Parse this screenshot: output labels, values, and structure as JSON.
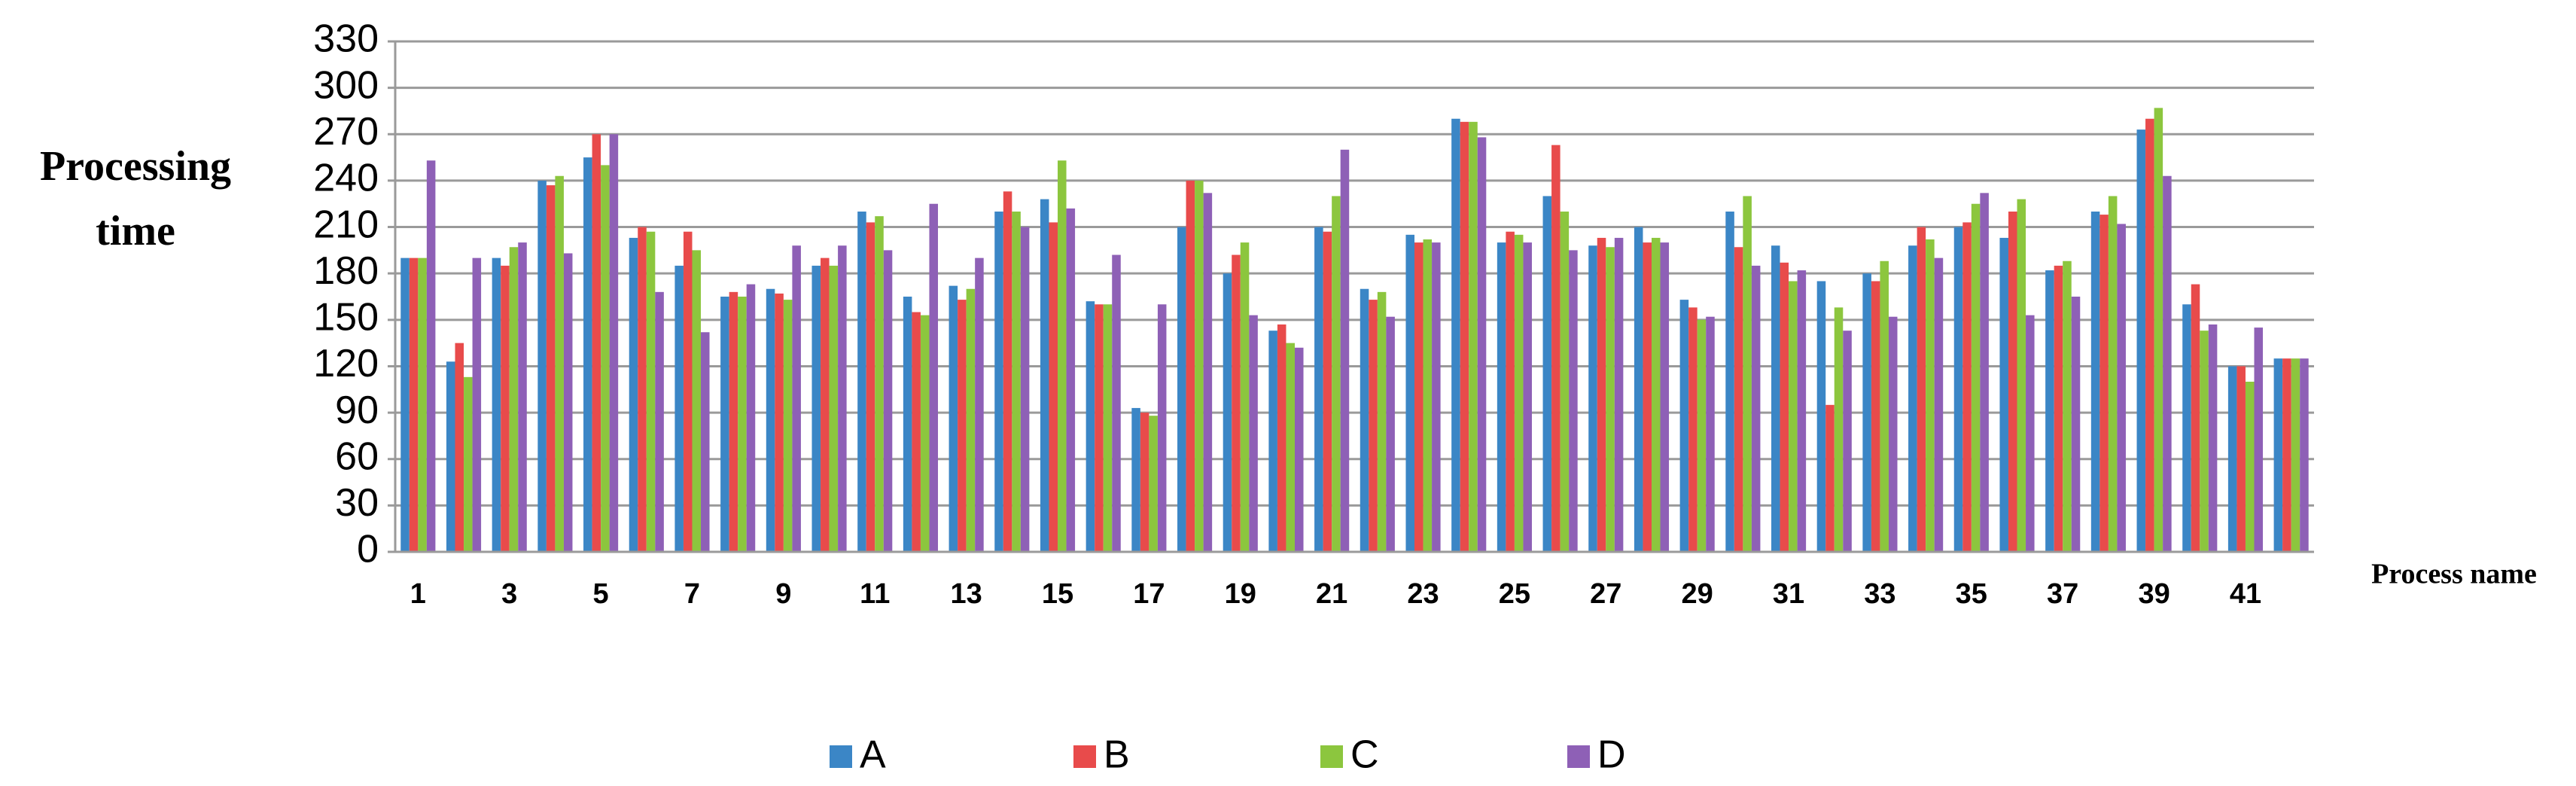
{
  "chart_data": {
    "type": "bar",
    "y_label": "Processing time",
    "x_label": "Process name",
    "categories": [
      "1",
      null,
      "3",
      null,
      "5",
      null,
      "7",
      null,
      "9",
      null,
      "11",
      null,
      "13",
      null,
      "15",
      null,
      "17",
      null,
      "19",
      null,
      "21",
      null,
      "23",
      null,
      "25",
      null,
      "27",
      null,
      "29",
      null,
      "31",
      null,
      "33",
      null,
      "35",
      null,
      "37",
      null,
      "39",
      null,
      "41",
      null
    ],
    "series": [
      {
        "name": "A",
        "color": "#3b86c6",
        "values": [
          190,
          123,
          190,
          240,
          255,
          203,
          185,
          165,
          170,
          185,
          220,
          165,
          172,
          220,
          228,
          162,
          93,
          210,
          180,
          143,
          210,
          170,
          205,
          280,
          200,
          230,
          198,
          210,
          163,
          220,
          198,
          175,
          180,
          198,
          210,
          203,
          182,
          220,
          273,
          160,
          120,
          125
        ]
      },
      {
        "name": "B",
        "color": "#e84b4b",
        "values": [
          190,
          135,
          185,
          237,
          270,
          210,
          207,
          168,
          167,
          190,
          213,
          155,
          163,
          233,
          213,
          160,
          90,
          240,
          192,
          147,
          207,
          163,
          200,
          278,
          207,
          263,
          203,
          200,
          158,
          197,
          187,
          95,
          175,
          210,
          213,
          220,
          185,
          218,
          280,
          173,
          120,
          125
        ]
      },
      {
        "name": "C",
        "color": "#8cc63e",
        "values": [
          190,
          113,
          197,
          243,
          250,
          207,
          195,
          165,
          163,
          185,
          217,
          153,
          170,
          220,
          253,
          160,
          88,
          240,
          200,
          135,
          230,
          168,
          202,
          278,
          205,
          220,
          197,
          203,
          150,
          230,
          175,
          158,
          188,
          202,
          225,
          228,
          188,
          230,
          287,
          143,
          110,
          125
        ]
      },
      {
        "name": "D",
        "color": "#8e60b6",
        "values": [
          253,
          190,
          200,
          193,
          270,
          168,
          142,
          173,
          198,
          198,
          195,
          225,
          190,
          210,
          222,
          192,
          160,
          232,
          153,
          132,
          260,
          152,
          200,
          268,
          200,
          195,
          203,
          200,
          152,
          185,
          182,
          143,
          152,
          190,
          232,
          153,
          165,
          212,
          243,
          147,
          145,
          125
        ]
      }
    ],
    "ylim": [
      0,
      330
    ],
    "yticks": [
      0,
      30,
      60,
      90,
      120,
      150,
      180,
      210,
      240,
      270,
      300,
      330
    ],
    "grid": true
  }
}
